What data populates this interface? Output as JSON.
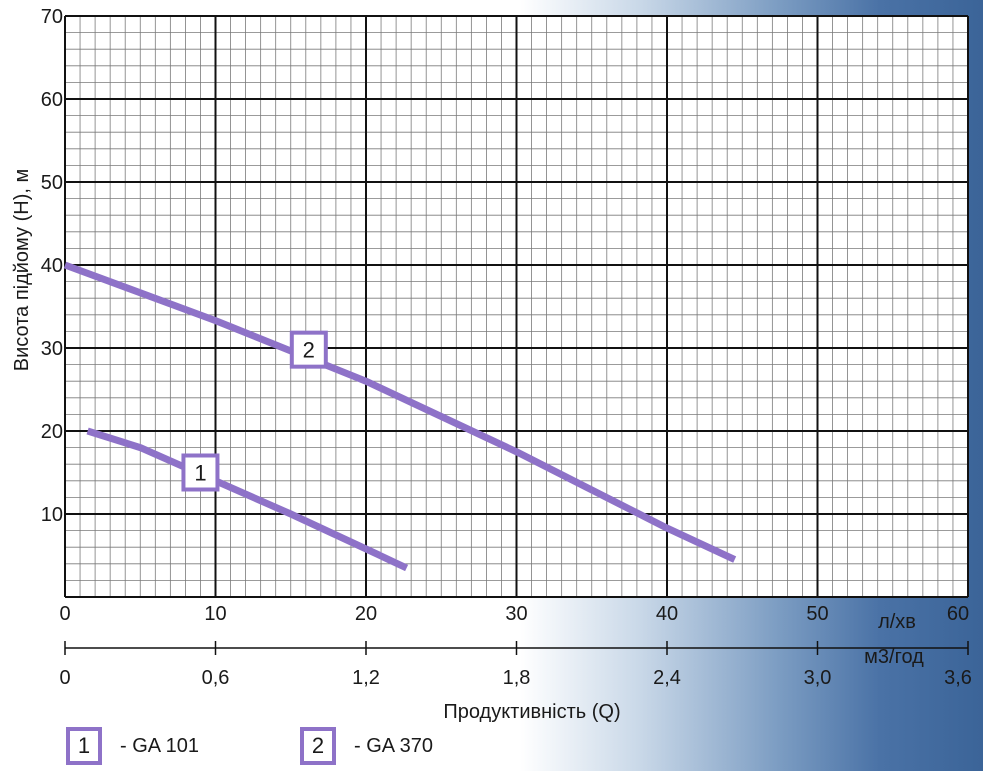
{
  "chart_data": {
    "type": "line",
    "ylabel": "Висота підйому (H), м",
    "xlabel": "Продуктивність (Q)",
    "x_unit": "л/хв",
    "x2_unit": "м3/год",
    "ylim": [
      0,
      70
    ],
    "xlim": [
      0,
      60
    ],
    "x2lim": [
      0,
      3.6
    ],
    "y_ticks": [
      "10",
      "20",
      "30",
      "40",
      "50",
      "60",
      "70"
    ],
    "x_ticks": [
      "0",
      "10",
      "20",
      "30",
      "40",
      "50",
      "60"
    ],
    "x2_ticks": [
      "0",
      "0,6",
      "1,2",
      "1,8",
      "2,4",
      "3,0",
      "3,6"
    ],
    "grid": true,
    "series": [
      {
        "name": "GA 101",
        "label": "1",
        "color": "#8e72c8",
        "x": [
          1.5,
          5,
          10,
          15,
          20,
          22.7
        ],
        "y": [
          20,
          18,
          14,
          10,
          5.8,
          3.5
        ]
      },
      {
        "name": "GA 370",
        "label": "2",
        "color": "#8e72c8",
        "x": [
          0,
          10,
          20,
          30,
          40,
          44.5
        ],
        "y": [
          40,
          33.3,
          26,
          17.5,
          8.3,
          4.5
        ]
      }
    ],
    "legend": [
      {
        "label": "1",
        "text": "- GA 101"
      },
      {
        "label": "2",
        "text": "- GA 370"
      }
    ]
  }
}
